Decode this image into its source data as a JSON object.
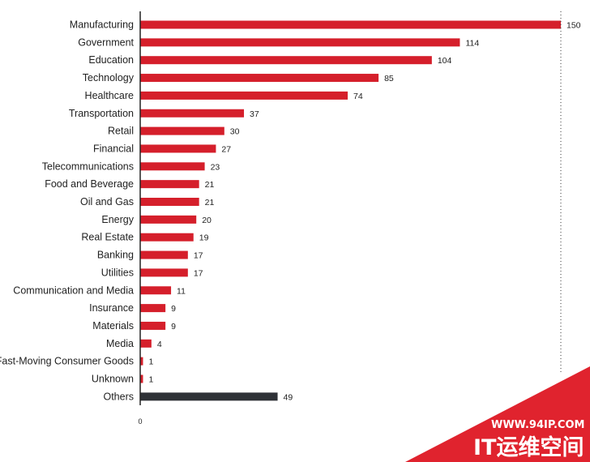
{
  "chart_data": {
    "type": "bar",
    "orientation": "horizontal",
    "categories": [
      "Manufacturing",
      "Government",
      "Education",
      "Technology",
      "Healthcare",
      "Transportation",
      "Retail",
      "Financial",
      "Telecommunications",
      "Food and Beverage",
      "Oil and Gas",
      "Energy",
      "Real Estate",
      "Banking",
      "Utilities",
      "Communication and Media",
      "Insurance",
      "Materials",
      "Media",
      "Fast-Moving Consumer Goods",
      "Unknown",
      "Others"
    ],
    "values": [
      150,
      114,
      104,
      85,
      74,
      37,
      30,
      27,
      23,
      21,
      21,
      20,
      19,
      17,
      17,
      11,
      9,
      9,
      4,
      1,
      1,
      49
    ],
    "bar_colors": [
      "#d51f2b",
      "#d51f2b",
      "#d51f2b",
      "#d51f2b",
      "#d51f2b",
      "#d51f2b",
      "#d51f2b",
      "#d51f2b",
      "#d51f2b",
      "#d51f2b",
      "#d51f2b",
      "#d51f2b",
      "#d51f2b",
      "#d51f2b",
      "#d51f2b",
      "#d51f2b",
      "#d51f2b",
      "#d51f2b",
      "#d51f2b",
      "#d51f2b",
      "#d51f2b",
      "#2e3136"
    ],
    "xlim": [
      0,
      150
    ],
    "x_tick_labels": [
      "0"
    ],
    "reference_line_at": 150,
    "grid": false,
    "title": "",
    "xlabel": "",
    "ylabel": ""
  },
  "watermark": {
    "url": "WWW.94IP.COM",
    "text": "IT运维空间",
    "color": "#e0232e"
  }
}
